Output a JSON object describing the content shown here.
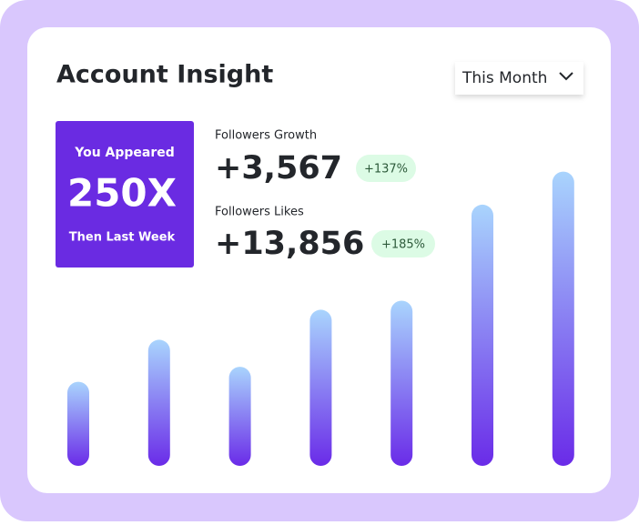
{
  "header": {
    "title": "Account Insight",
    "dropdown": "This Month"
  },
  "highlight": {
    "top": "You Appeared",
    "value": "250X",
    "bottom": "Then Last Week"
  },
  "stats": [
    {
      "label": "Followers Growth",
      "value": "+3,567",
      "change": "+137%"
    },
    {
      "label": "Followers Likes",
      "value": "+13,856",
      "change": "+185%"
    }
  ],
  "chart_data": {
    "type": "bar",
    "values": [
      28,
      42,
      33,
      52,
      55,
      87,
      98
    ],
    "gradient": [
      "#6a2be8",
      "#a9d4fd"
    ]
  }
}
